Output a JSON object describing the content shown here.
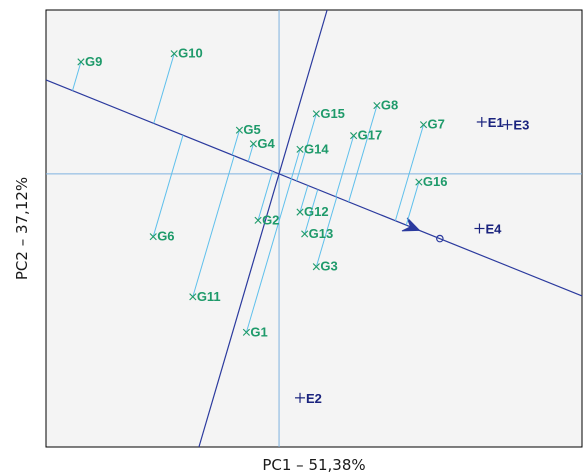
{
  "chart_data": {
    "type": "scatter",
    "title": "",
    "xlabel": "PC1 – 51,38%",
    "ylabel": "PC2 – 37,12%",
    "grid": false,
    "legend": "none",
    "colors": {
      "background": "#f4f4f4",
      "frame": "#000000",
      "genotype": "#1e9a6a",
      "environment": "#1a237e",
      "projection": "#5fc0ec",
      "axis_line": "#2b3a9e",
      "crosshair": "#7fb2e0"
    },
    "xlim": [
      -10,
      13
    ],
    "ylim": [
      -10,
      6
    ],
    "genotypes": [
      {
        "label": "G1",
        "x": -1.4,
        "y": -5.8
      },
      {
        "label": "G2",
        "x": -0.9,
        "y": -1.7
      },
      {
        "label": "G3",
        "x": 1.6,
        "y": -3.4
      },
      {
        "label": "G4",
        "x": -1.1,
        "y": 1.1
      },
      {
        "label": "G5",
        "x": -1.7,
        "y": 1.6
      },
      {
        "label": "G6",
        "x": -5.4,
        "y": -2.3
      },
      {
        "label": "G7",
        "x": 6.2,
        "y": 1.8
      },
      {
        "label": "G8",
        "x": 4.2,
        "y": 2.5
      },
      {
        "label": "G9",
        "x": -8.5,
        "y": 4.1
      },
      {
        "label": "G10",
        "x": -4.5,
        "y": 4.4
      },
      {
        "label": "G11",
        "x": -3.7,
        "y": -4.5
      },
      {
        "label": "G12",
        "x": 0.9,
        "y": -1.4
      },
      {
        "label": "G13",
        "x": 1.1,
        "y": -2.2
      },
      {
        "label": "G14",
        "x": 0.9,
        "y": 0.9
      },
      {
        "label": "G15",
        "x": 1.6,
        "y": 2.2
      },
      {
        "label": "G16",
        "x": 6.0,
        "y": -0.3
      },
      {
        "label": "G17",
        "x": 3.2,
        "y": 1.4
      }
    ],
    "environments": [
      {
        "label": "E1",
        "x": 8.7,
        "y": 1.9
      },
      {
        "label": "E2",
        "x": 0.9,
        "y": -8.2
      },
      {
        "label": "E3",
        "x": 9.8,
        "y": 1.8
      },
      {
        "label": "E4",
        "x": 8.6,
        "y": -2.0
      }
    ],
    "average_environment_axis": {
      "slope": -0.3438,
      "marker": {
        "x": 6.9,
        "y": -2.37
      }
    },
    "perpendicular_axis": {
      "slope": 2.909
    }
  }
}
